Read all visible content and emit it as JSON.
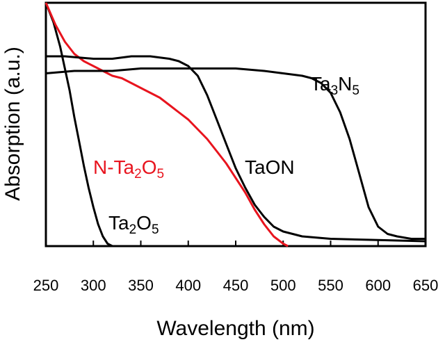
{
  "chart_data": {
    "type": "line",
    "xlabel": "Wavelength (nm)",
    "ylabel": "Absorption (a.u.)",
    "xlim": [
      250,
      650
    ],
    "ylim": [
      0,
      1
    ],
    "x_ticks": [
      250,
      300,
      350,
      400,
      450,
      500,
      550,
      600,
      650
    ],
    "grid": false,
    "series": [
      {
        "name": "Ta2O5",
        "label": {
          "base": "Ta",
          "sub1": "2",
          "mid": "O",
          "sub2": "5"
        },
        "color": "#000000",
        "points": [
          [
            250,
            1.0
          ],
          [
            258,
            0.92
          ],
          [
            265,
            0.82
          ],
          [
            270,
            0.73
          ],
          [
            275,
            0.64
          ],
          [
            280,
            0.53
          ],
          [
            285,
            0.43
          ],
          [
            290,
            0.33
          ],
          [
            295,
            0.24
          ],
          [
            300,
            0.16
          ],
          [
            305,
            0.09
          ],
          [
            310,
            0.04
          ],
          [
            315,
            0.01
          ],
          [
            320,
            0.0
          ]
        ]
      },
      {
        "name": "N-Ta2O5",
        "label": {
          "base": "N-Ta",
          "sub1": "2",
          "mid": "O",
          "sub2": "5"
        },
        "color": "#e8141e",
        "points": [
          [
            250,
            1.0
          ],
          [
            260,
            0.91
          ],
          [
            270,
            0.84
          ],
          [
            280,
            0.79
          ],
          [
            290,
            0.76
          ],
          [
            300,
            0.74
          ],
          [
            310,
            0.72
          ],
          [
            320,
            0.7
          ],
          [
            330,
            0.69
          ],
          [
            340,
            0.67
          ],
          [
            350,
            0.65
          ],
          [
            360,
            0.63
          ],
          [
            370,
            0.61
          ],
          [
            380,
            0.58
          ],
          [
            390,
            0.55
          ],
          [
            400,
            0.52
          ],
          [
            410,
            0.48
          ],
          [
            420,
            0.44
          ],
          [
            430,
            0.39
          ],
          [
            440,
            0.34
          ],
          [
            450,
            0.28
          ],
          [
            460,
            0.22
          ],
          [
            470,
            0.15
          ],
          [
            480,
            0.09
          ],
          [
            490,
            0.04
          ],
          [
            500,
            0.01
          ],
          [
            505,
            0.0
          ]
        ]
      },
      {
        "name": "TaON",
        "label": {
          "base": "TaON",
          "sub1": "",
          "mid": "",
          "sub2": ""
        },
        "color": "#000000",
        "points": [
          [
            250,
            0.78
          ],
          [
            270,
            0.78
          ],
          [
            300,
            0.77
          ],
          [
            320,
            0.77
          ],
          [
            340,
            0.78
          ],
          [
            360,
            0.78
          ],
          [
            380,
            0.77
          ],
          [
            390,
            0.76
          ],
          [
            400,
            0.74
          ],
          [
            410,
            0.7
          ],
          [
            420,
            0.62
          ],
          [
            430,
            0.52
          ],
          [
            440,
            0.42
          ],
          [
            450,
            0.32
          ],
          [
            460,
            0.24
          ],
          [
            470,
            0.17
          ],
          [
            480,
            0.12
          ],
          [
            490,
            0.08
          ],
          [
            500,
            0.06
          ],
          [
            520,
            0.04
          ],
          [
            550,
            0.03
          ],
          [
            600,
            0.025
          ],
          [
            650,
            0.02
          ]
        ]
      },
      {
        "name": "Ta3N5",
        "label": {
          "base": "Ta",
          "sub1": "3",
          "mid": "N",
          "sub2": "5"
        },
        "color": "#000000",
        "points": [
          [
            250,
            0.71
          ],
          [
            280,
            0.72
          ],
          [
            300,
            0.72
          ],
          [
            320,
            0.72
          ],
          [
            350,
            0.73
          ],
          [
            380,
            0.73
          ],
          [
            400,
            0.73
          ],
          [
            420,
            0.73
          ],
          [
            450,
            0.73
          ],
          [
            480,
            0.72
          ],
          [
            500,
            0.71
          ],
          [
            520,
            0.7
          ],
          [
            530,
            0.69
          ],
          [
            540,
            0.67
          ],
          [
            550,
            0.63
          ],
          [
            560,
            0.55
          ],
          [
            570,
            0.44
          ],
          [
            580,
            0.3
          ],
          [
            590,
            0.16
          ],
          [
            600,
            0.08
          ],
          [
            610,
            0.05
          ],
          [
            620,
            0.04
          ],
          [
            635,
            0.03
          ],
          [
            650,
            0.03
          ]
        ]
      }
    ]
  }
}
